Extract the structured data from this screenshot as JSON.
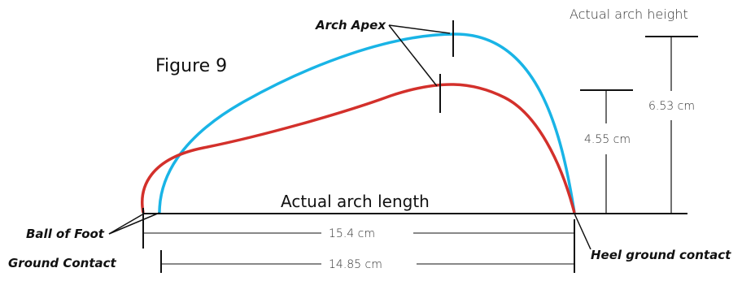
{
  "figure_title": "Figure 9",
  "labels": {
    "arch_apex": "Arch Apex",
    "actual_arch_height": "Actual arch height",
    "actual_arch_length": "Actual arch length",
    "ball_of_foot": "Ball of Foot",
    "ground_contact": "Ground Contact",
    "heel_ground_contact": "Heel ground contact"
  },
  "measurements": {
    "height_blue": "6.53 cm",
    "height_red": "4.55 cm",
    "length_red": "15.4 cm",
    "length_blue": "14.85 cm"
  },
  "colors": {
    "blue_curve": "#19b4e6",
    "red_curve": "#d3302b",
    "lines": "#111111"
  }
}
